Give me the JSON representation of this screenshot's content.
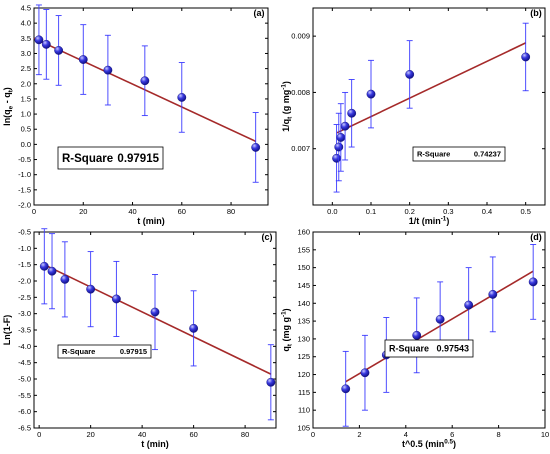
{
  "chart_data": [
    {
      "id": "a",
      "type": "scatter",
      "panel_label": "(a)",
      "xlabel": "t (min)",
      "ylabel": "ln(q",
      "ylabel_parts": [
        "ln(q",
        "e",
        " - q",
        "t",
        ")"
      ],
      "xlim": [
        0,
        95
      ],
      "ylim": [
        -2.0,
        4.5
      ],
      "xticks": [
        0,
        20,
        40,
        60,
        80
      ],
      "yticks": [
        -2.0,
        -1.5,
        -1.0,
        -0.5,
        0.0,
        0.5,
        1.0,
        1.5,
        2.0,
        2.5,
        3.0,
        3.5,
        4.0,
        4.5
      ],
      "points": [
        {
          "x": 2,
          "y": 3.45,
          "err": 1.15
        },
        {
          "x": 5,
          "y": 3.3,
          "err": 1.15
        },
        {
          "x": 10,
          "y": 3.1,
          "err": 1.15
        },
        {
          "x": 20,
          "y": 2.8,
          "err": 1.15
        },
        {
          "x": 30,
          "y": 2.45,
          "err": 1.15
        },
        {
          "x": 45,
          "y": 2.1,
          "err": 1.15
        },
        {
          "x": 60,
          "y": 1.55,
          "err": 1.15
        },
        {
          "x": 90,
          "y": -0.1,
          "err": 1.15
        }
      ],
      "fit": {
        "x0": 0,
        "y0": 3.5,
        "x1": 90,
        "y1": 0.1
      },
      "r_square_label": "R-Square",
      "r_square_value": "0.97915",
      "rsq_style": "large"
    },
    {
      "id": "b",
      "type": "scatter",
      "panel_label": "(b)",
      "xlabel": "1/t (min",
      "xlabel_parts": [
        "1/t (min",
        "-1",
        ")"
      ],
      "ylabel_parts": [
        "1/q",
        "t",
        " (g mg",
        "-1",
        ")"
      ],
      "xlim": [
        -0.05,
        0.55
      ],
      "ylim": [
        0.006,
        0.0095
      ],
      "xticks": [
        0.0,
        0.1,
        0.2,
        0.3,
        0.4,
        0.5
      ],
      "xtick_labels": [
        "0.0",
        "0.1",
        "0.2",
        "0.3",
        "0.4",
        "0.5"
      ],
      "yticks": [
        0.007,
        0.008,
        0.009
      ],
      "ytick_labels": [
        "0.007",
        "0.008",
        "0.009"
      ],
      "points": [
        {
          "x": 0.011,
          "y": 0.00683,
          "err": 0.0006
        },
        {
          "x": 0.0167,
          "y": 0.00703,
          "err": 0.0006
        },
        {
          "x": 0.022,
          "y": 0.0072,
          "err": 0.0006
        },
        {
          "x": 0.033,
          "y": 0.0074,
          "err": 0.0006
        },
        {
          "x": 0.05,
          "y": 0.00763,
          "err": 0.0006
        },
        {
          "x": 0.1,
          "y": 0.00797,
          "err": 0.0006
        },
        {
          "x": 0.2,
          "y": 0.00832,
          "err": 0.0006
        },
        {
          "x": 0.5,
          "y": 0.00863,
          "err": 0.0006
        }
      ],
      "fit": {
        "x0": 0.011,
        "y0": 0.00728,
        "x1": 0.5,
        "y1": 0.00888
      },
      "r_square_label": "R-Square",
      "r_square_value": "0.74237",
      "rsq_style": "small"
    },
    {
      "id": "c",
      "type": "scatter",
      "panel_label": "(c)",
      "xlabel": "t (min)",
      "ylabel": "Ln(1-F)",
      "xlim": [
        -2,
        92
      ],
      "ylim": [
        -6.5,
        -0.5
      ],
      "xticks": [
        0,
        20,
        40,
        60,
        80
      ],
      "yticks": [
        -6.5,
        -6.0,
        -5.5,
        -5.0,
        -4.5,
        -4.0,
        -3.5,
        -3.0,
        -2.5,
        -2.0,
        -1.5,
        -1.0,
        -0.5
      ],
      "points": [
        {
          "x": 2,
          "y": -1.55,
          "err": 1.15
        },
        {
          "x": 5,
          "y": -1.7,
          "err": 1.15
        },
        {
          "x": 10,
          "y": -1.95,
          "err": 1.15
        },
        {
          "x": 20,
          "y": -2.25,
          "err": 1.15
        },
        {
          "x": 30,
          "y": -2.55,
          "err": 1.15
        },
        {
          "x": 45,
          "y": -2.95,
          "err": 1.15
        },
        {
          "x": 60,
          "y": -3.45,
          "err": 1.15
        },
        {
          "x": 90,
          "y": -5.1,
          "err": 1.15
        }
      ],
      "fit": {
        "x0": 2,
        "y0": -1.5,
        "x1": 90,
        "y1": -4.85
      },
      "r_square_label": "R-Square",
      "r_square_value": "0.97915",
      "rsq_style": "small"
    },
    {
      "id": "d",
      "type": "scatter",
      "panel_label": "(d)",
      "xlabel_parts": [
        "t^0.5 (min",
        "0.5",
        ")"
      ],
      "ylabel_parts": [
        "q",
        "t",
        " (mg g",
        "-1",
        ")"
      ],
      "xlim": [
        0,
        10
      ],
      "ylim": [
        105,
        160
      ],
      "xticks": [
        0,
        2,
        4,
        6,
        8,
        10
      ],
      "yticks": [
        105,
        110,
        115,
        120,
        125,
        130,
        135,
        140,
        145,
        150,
        155,
        160
      ],
      "points": [
        {
          "x": 1.41,
          "y": 116,
          "err": 10.5
        },
        {
          "x": 2.24,
          "y": 120.5,
          "err": 10.5
        },
        {
          "x": 3.16,
          "y": 125.5,
          "err": 10.5
        },
        {
          "x": 4.47,
          "y": 131,
          "err": 10.5
        },
        {
          "x": 5.48,
          "y": 135.5,
          "err": 10.5
        },
        {
          "x": 6.71,
          "y": 139.5,
          "err": 10.5
        },
        {
          "x": 7.75,
          "y": 142.5,
          "err": 10.5
        },
        {
          "x": 9.49,
          "y": 146,
          "err": 10.5
        }
      ],
      "fit": {
        "x0": 1.41,
        "y0": 118,
        "x1": 9.49,
        "y1": 149
      },
      "r_square_label": "R-Square",
      "r_square_value": "0.97543",
      "rsq_style": "medium"
    }
  ],
  "colors": {
    "marker": "#2b2bd6",
    "errorbar": "#3a3aff",
    "fit": "#a52a2a"
  }
}
